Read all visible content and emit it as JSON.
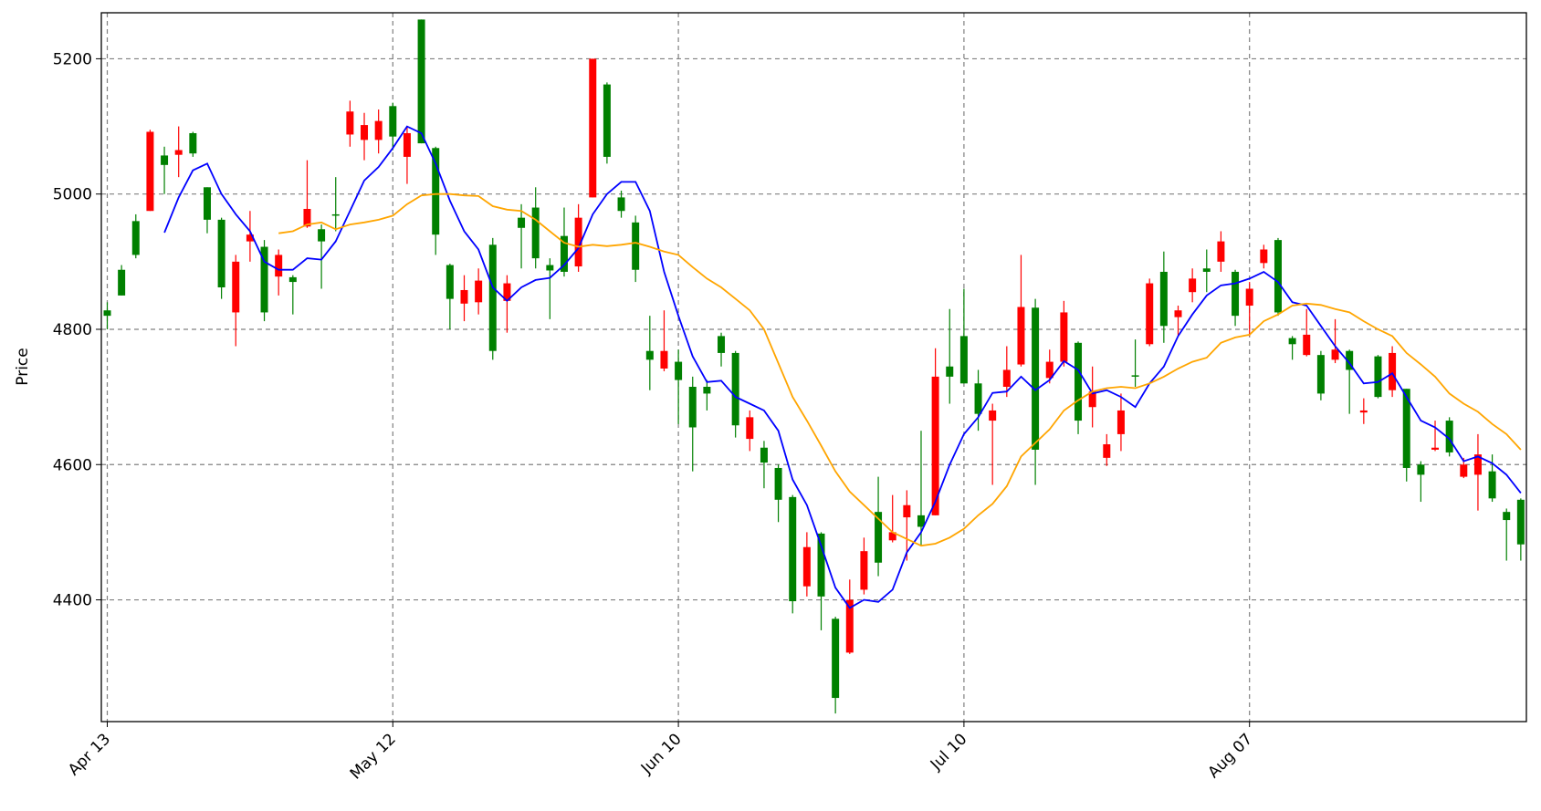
{
  "chart_data": {
    "type": "candlestick",
    "ylabel": "Price",
    "categories": [
      "Apr 13",
      null,
      null,
      null,
      null,
      null,
      null,
      null,
      null,
      null,
      null,
      null,
      null,
      null,
      null,
      null,
      null,
      null,
      null,
      null,
      "May 12",
      null,
      null,
      null,
      null,
      null,
      null,
      null,
      null,
      null,
      null,
      null,
      null,
      null,
      null,
      null,
      null,
      null,
      null,
      null,
      "Jun 10",
      null,
      null,
      null,
      null,
      null,
      null,
      null,
      null,
      null,
      null,
      null,
      null,
      null,
      null,
      null,
      null,
      null,
      null,
      null,
      "Jul 10",
      null,
      null,
      null,
      null,
      null,
      null,
      null,
      null,
      null,
      null,
      null,
      null,
      null,
      null,
      null,
      null,
      null,
      null,
      null,
      "Aug 07",
      null,
      null,
      null,
      null,
      null,
      null,
      null,
      null,
      null,
      null,
      null,
      null,
      null,
      null,
      null,
      null,
      null,
      null,
      null
    ],
    "open": [
      4820,
      4850,
      4910,
      5092,
      5043,
      5065,
      5060,
      4962,
      4862,
      4900,
      4940,
      4825,
      4910,
      4870,
      4978,
      4930,
      4968,
      5122,
      5102,
      5108,
      5085,
      5090,
      5075,
      4940,
      4845,
      4858,
      4872,
      4768,
      4868,
      4950,
      4905,
      4887,
      4885,
      4965,
      5200,
      5055,
      4975,
      4888,
      4755,
      4768,
      4725,
      4655,
      4705,
      4765,
      4658,
      4670,
      4603,
      4548,
      4398,
      4478,
      4405,
      4255,
      4400,
      4472,
      4455,
      4500,
      4540,
      4508,
      4730,
      4730,
      4720,
      4675,
      4680,
      4740,
      4833,
      4622,
      4752,
      4825,
      4665,
      4708,
      4630,
      4680,
      4730,
      4868,
      4805,
      4828,
      4875,
      4885,
      4930,
      4820,
      4860,
      4918,
      4825,
      4778,
      4792,
      4705,
      4770,
      4740,
      4680,
      4700,
      4765,
      4595,
      4585,
      4625,
      4618,
      4600,
      4615,
      4550,
      4518,
      4482
    ],
    "high": [
      4840,
      4895,
      4970,
      5095,
      5070,
      5100,
      5092,
      5010,
      4965,
      4910,
      4975,
      4932,
      4918,
      4880,
      5050,
      4955,
      5025,
      5138,
      5120,
      5125,
      5135,
      5100,
      5258,
      5070,
      4897,
      4880,
      4890,
      4935,
      4880,
      4985,
      5010,
      4905,
      4980,
      4985,
      5200,
      5165,
      5005,
      4968,
      4820,
      4828,
      4770,
      4730,
      4725,
      4795,
      4768,
      4680,
      4635,
      4600,
      4555,
      4500,
      4500,
      4375,
      4430,
      4492,
      4582,
      4555,
      4562,
      4650,
      4772,
      4830,
      4860,
      4740,
      4690,
      4775,
      4910,
      4845,
      4770,
      4842,
      4782,
      4745,
      4645,
      4705,
      4785,
      4875,
      4915,
      4835,
      4890,
      4918,
      4945,
      4888,
      4870,
      4925,
      4935,
      4790,
      4830,
      4768,
      4815,
      4770,
      4698,
      4762,
      4775,
      4712,
      4605,
      4665,
      4670,
      4610,
      4645,
      4615,
      4535,
      4550
    ],
    "low": [
      4800,
      4850,
      4905,
      4975,
      5000,
      5025,
      5055,
      4942,
      4845,
      4775,
      4900,
      4812,
      4850,
      4822,
      4950,
      4860,
      4945,
      5070,
      5050,
      5060,
      5065,
      5015,
      5075,
      4910,
      4800,
      4812,
      4822,
      4755,
      4795,
      4890,
      4890,
      4815,
      4878,
      4885,
      4995,
      5045,
      4965,
      4870,
      4710,
      4738,
      4660,
      4590,
      4680,
      4745,
      4640,
      4620,
      4565,
      4515,
      4380,
      4405,
      4355,
      4232,
      4320,
      4408,
      4435,
      4485,
      4458,
      4480,
      4525,
      4690,
      4720,
      4650,
      4570,
      4700,
      4745,
      4570,
      4720,
      4745,
      4645,
      4655,
      4598,
      4620,
      4715,
      4775,
      4780,
      4790,
      4840,
      4855,
      4885,
      4805,
      4790,
      4890,
      4820,
      4755,
      4760,
      4695,
      4750,
      4675,
      4660,
      4698,
      4700,
      4575,
      4545,
      4620,
      4612,
      4580,
      4532,
      4545,
      4458,
      4458
    ],
    "close": [
      4828,
      4888,
      4960,
      4975,
      5057,
      5058,
      5090,
      5010,
      4962,
      4825,
      4930,
      4922,
      4878,
      4877,
      4952,
      4948,
      4970,
      5088,
      5080,
      5080,
      5130,
      5055,
      5258,
      5068,
      4895,
      4838,
      4840,
      4925,
      4842,
      4965,
      4980,
      4895,
      4938,
      4893,
      4995,
      5162,
      4995,
      4958,
      4768,
      4742,
      4752,
      4715,
      4715,
      4790,
      4765,
      4638,
      4625,
      4595,
      4552,
      4420,
      4498,
      4372,
      4322,
      4415,
      4530,
      4488,
      4522,
      4525,
      4525,
      4745,
      4790,
      4720,
      4665,
      4715,
      4748,
      4832,
      4728,
      4752,
      4780,
      4685,
      4610,
      4645,
      4732,
      4778,
      4885,
      4818,
      4855,
      4890,
      4900,
      4885,
      4835,
      4898,
      4932,
      4787,
      4762,
      4762,
      4755,
      4768,
      4677,
      4760,
      4710,
      4712,
      4600,
      4622,
      4665,
      4582,
      4585,
      4590,
      4530,
      4548
    ],
    "up_color": "green",
    "down_color": "red",
    "overlays": [
      {
        "color": "blue",
        "values": [
          null,
          null,
          null,
          null,
          4943,
          4995,
          5035,
          5045,
          5000,
          4970,
          4945,
          4900,
          4888,
          4888,
          4905,
          4903,
          4930,
          4975,
          5020,
          5040,
          5068,
          5100,
          5090,
          5045,
          4990,
          4945,
          4918,
          4862,
          4842,
          4862,
          4873,
          4876,
          4895,
          4920,
          4970,
          5000,
          5018,
          5018,
          4975,
          4885,
          4820,
          4760,
          4722,
          4724,
          4700,
          4690,
          4680,
          4650,
          4578,
          4540,
          4480,
          4418,
          4388,
          4400,
          4397,
          4415,
          4470,
          4500,
          4545,
          4600,
          4645,
          4670,
          4706,
          4708,
          4730,
          4710,
          4725,
          4753,
          4740,
          4705,
          4710,
          4700,
          4685,
          4720,
          4745,
          4790,
          4822,
          4850,
          4865,
          4868,
          4875,
          4885,
          4870,
          4840,
          4835,
          4805,
          4775,
          4750,
          4720,
          4722,
          4735,
          4700,
          4665,
          4655,
          4638,
          4605,
          4612,
          4602,
          4585,
          4558
        ]
      },
      {
        "color": "orange",
        "values": [
          null,
          null,
          null,
          null,
          null,
          null,
          null,
          null,
          null,
          null,
          null,
          null,
          4942,
          4945,
          4955,
          4958,
          4948,
          4955,
          4958,
          4962,
          4968,
          4985,
          4998,
          5000,
          5000,
          4998,
          4997,
          4982,
          4977,
          4975,
          4962,
          4945,
          4928,
          4922,
          4925,
          4923,
          4925,
          4928,
          4922,
          4915,
          4910,
          4892,
          4875,
          4862,
          4845,
          4828,
          4800,
          4750,
          4700,
          4665,
          4628,
          4590,
          4560,
          4540,
          4520,
          4500,
          4490,
          4480,
          4483,
          4492,
          4505,
          4525,
          4542,
          4568,
          4612,
          4632,
          4652,
          4680,
          4695,
          4708,
          4713,
          4715,
          4713,
          4720,
          4730,
          4742,
          4752,
          4758,
          4780,
          4788,
          4792,
          4812,
          4822,
          4835,
          4838,
          4836,
          4830,
          4825,
          4812,
          4800,
          4790,
          4765,
          4748,
          4730,
          4705,
          4690,
          4678,
          4660,
          4645,
          4622
        ]
      }
    ],
    "ylim": [
      4220,
      5268
    ],
    "yticks": [
      4400,
      4600,
      4800,
      5000,
      5200
    ],
    "grid": true
  }
}
